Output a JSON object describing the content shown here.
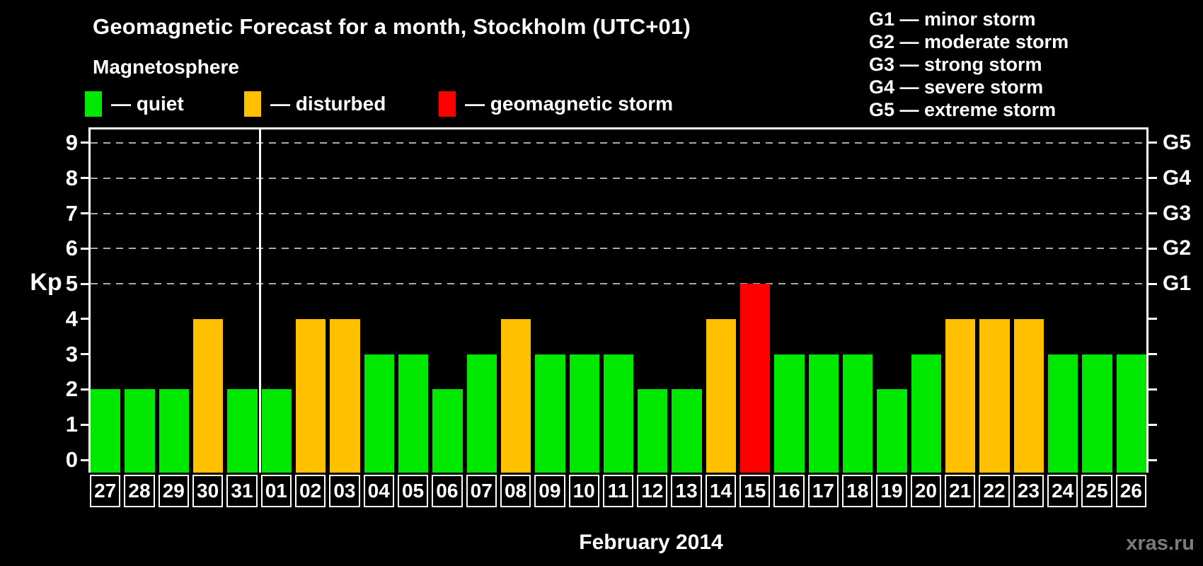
{
  "title": "Geomagnetic Forecast for a month, Stockholm (UTC+01)",
  "subtitle": "Magnetosphere",
  "legend": {
    "items": [
      {
        "name": "quiet",
        "label": "— quiet",
        "color": "#00e800"
      },
      {
        "name": "disturbed",
        "label": "— disturbed",
        "color": "#ffc000"
      },
      {
        "name": "storm",
        "label": "— geomagnetic storm",
        "color": "#ff0000"
      }
    ]
  },
  "storm_scale": {
    "lines": [
      "G1 — minor storm",
      "G2 — moderate storm",
      "G3 — strong storm",
      "G4 — severe storm",
      "G5 — extreme storm"
    ]
  },
  "chart_data": {
    "type": "bar",
    "title": "Geomagnetic Forecast for a month, Stockholm (UTC+01)",
    "xlabel": "February 2014",
    "ylabel": "Kp",
    "ylim": [
      0,
      9
    ],
    "y_ticks": [
      0,
      1,
      2,
      3,
      4,
      5,
      6,
      7,
      8,
      9
    ],
    "gridlines_at": [
      5,
      6,
      7,
      8,
      9
    ],
    "grid": "dashed-horizontal",
    "legend_position": "top-left",
    "categories": [
      "27",
      "28",
      "29",
      "30",
      "31",
      "01",
      "02",
      "03",
      "04",
      "05",
      "06",
      "07",
      "08",
      "09",
      "10",
      "11",
      "12",
      "13",
      "14",
      "15",
      "16",
      "17",
      "18",
      "19",
      "20",
      "21",
      "22",
      "23",
      "24",
      "25",
      "26"
    ],
    "values": [
      2,
      2,
      2,
      4,
      2,
      2,
      4,
      4,
      3,
      3,
      2,
      3,
      4,
      3,
      3,
      3,
      2,
      2,
      4,
      5,
      3,
      3,
      3,
      2,
      3,
      4,
      4,
      4,
      3,
      3,
      3
    ],
    "statuses": [
      "quiet",
      "quiet",
      "quiet",
      "disturbed",
      "quiet",
      "quiet",
      "disturbed",
      "disturbed",
      "quiet",
      "quiet",
      "quiet",
      "quiet",
      "disturbed",
      "quiet",
      "quiet",
      "quiet",
      "quiet",
      "quiet",
      "disturbed",
      "storm",
      "quiet",
      "quiet",
      "quiet",
      "quiet",
      "quiet",
      "disturbed",
      "disturbed",
      "disturbed",
      "quiet",
      "quiet",
      "quiet"
    ],
    "month_boundary_after_index": 4,
    "right_axis_labels": [
      {
        "value": 5,
        "label": "G1"
      },
      {
        "value": 6,
        "label": "G2"
      },
      {
        "value": 7,
        "label": "G3"
      },
      {
        "value": 8,
        "label": "G4"
      },
      {
        "value": 9,
        "label": "G5"
      }
    ]
  },
  "colors": {
    "background": "#000000",
    "axis": "#ffffff",
    "text": "#ffffff",
    "grid": "#aaaaaa",
    "quiet": "#00e800",
    "disturbed": "#ffc000",
    "storm": "#ff0000",
    "watermark": "#7b7b7b"
  },
  "footer": {
    "xaxis_title": "February 2014",
    "watermark": "xras.ru"
  }
}
